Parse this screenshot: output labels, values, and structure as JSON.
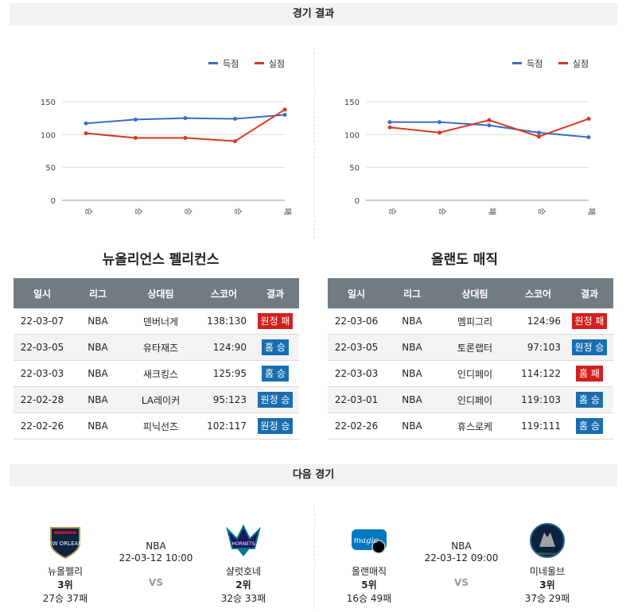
{
  "sections": {
    "results_title": "경기 결과",
    "next_title": "다음 경기"
  },
  "legend": {
    "scored": "득점",
    "conceded": "실점"
  },
  "colors": {
    "scored": "#3b6cc9",
    "conceded": "#d9381e",
    "win": "#1a6eb0",
    "loss": "#d51e1e",
    "header": "#707b84"
  },
  "chart_data": [
    {
      "type": "line",
      "categories": [
        "승",
        "승",
        "승",
        "승",
        "패"
      ],
      "ylim": [
        0,
        150
      ],
      "yticks": [
        "0",
        "50",
        "100",
        "150"
      ],
      "grid": true,
      "legend_position": "top-right",
      "series": [
        {
          "name": "득점",
          "values": [
            117,
            123,
            125,
            124,
            130
          ]
        },
        {
          "name": "실점",
          "values": [
            102,
            95,
            95,
            90,
            138
          ]
        }
      ]
    },
    {
      "type": "line",
      "categories": [
        "승",
        "승",
        "패",
        "승",
        "패"
      ],
      "ylim": [
        0,
        150
      ],
      "yticks": [
        "0",
        "50",
        "100",
        "150"
      ],
      "grid": true,
      "legend_position": "top-right",
      "series": [
        {
          "name": "득점",
          "values": [
            119,
            119,
            114,
            103,
            96
          ]
        },
        {
          "name": "실점",
          "values": [
            111,
            103,
            122,
            97,
            124
          ]
        }
      ]
    }
  ],
  "teams": [
    {
      "title": "뉴올리언스 펠리컨스",
      "headers": [
        "일시",
        "리그",
        "상대팀",
        "스코어",
        "결과"
      ],
      "rows": [
        {
          "date": "22-03-07",
          "league": "NBA",
          "opponent": "덴버너게",
          "score": "138:130",
          "result": "원정 패",
          "type": "loss"
        },
        {
          "date": "22-03-05",
          "league": "NBA",
          "opponent": "유타재즈",
          "score": "124:90",
          "result": "홈 승",
          "type": "win"
        },
        {
          "date": "22-03-03",
          "league": "NBA",
          "opponent": "새크킹스",
          "score": "125:95",
          "result": "홈 승",
          "type": "win"
        },
        {
          "date": "22-02-28",
          "league": "NBA",
          "opponent": "LA레이커",
          "score": "95:123",
          "result": "원정 승",
          "type": "win"
        },
        {
          "date": "22-02-26",
          "league": "NBA",
          "opponent": "피닉선즈",
          "score": "102:117",
          "result": "원정 승",
          "type": "win"
        }
      ]
    },
    {
      "title": "올랜도 매직",
      "headers": [
        "일시",
        "리그",
        "상대팀",
        "스코어",
        "결과"
      ],
      "rows": [
        {
          "date": "22-03-06",
          "league": "NBA",
          "opponent": "멤피그리",
          "score": "124:96",
          "result": "원정 패",
          "type": "loss"
        },
        {
          "date": "22-03-05",
          "league": "NBA",
          "opponent": "토론랩터",
          "score": "97:103",
          "result": "원정 승",
          "type": "win"
        },
        {
          "date": "22-03-03",
          "league": "NBA",
          "opponent": "인디페이",
          "score": "114:122",
          "result": "홈 패",
          "type": "loss"
        },
        {
          "date": "22-03-01",
          "league": "NBA",
          "opponent": "인디페이",
          "score": "119:103",
          "result": "홈 승",
          "type": "win"
        },
        {
          "date": "22-02-26",
          "league": "NBA",
          "opponent": "휴스로케",
          "score": "119:111",
          "result": "홈 승",
          "type": "win"
        }
      ]
    }
  ],
  "next_games": [
    {
      "league": "NBA",
      "datetime": "22-03-12 10:00",
      "vs": "VS",
      "home": {
        "name": "뉴올펠리",
        "rank": "3위",
        "record": "27승 37패",
        "logo_text": "NEW ORLEANS"
      },
      "away": {
        "name": "샬럿호네",
        "rank": "2위",
        "record": "32승 33패",
        "logo_text": "HORNETS"
      }
    },
    {
      "league": "NBA",
      "datetime": "22-03-12 09:00",
      "vs": "VS",
      "home": {
        "name": "올랜매직",
        "rank": "5위",
        "record": "16승 49패",
        "logo_text": "magic"
      },
      "away": {
        "name": "미네울브",
        "rank": "3위",
        "record": "37승 29패",
        "logo_text": "TIMBERWOLVES"
      }
    }
  ]
}
